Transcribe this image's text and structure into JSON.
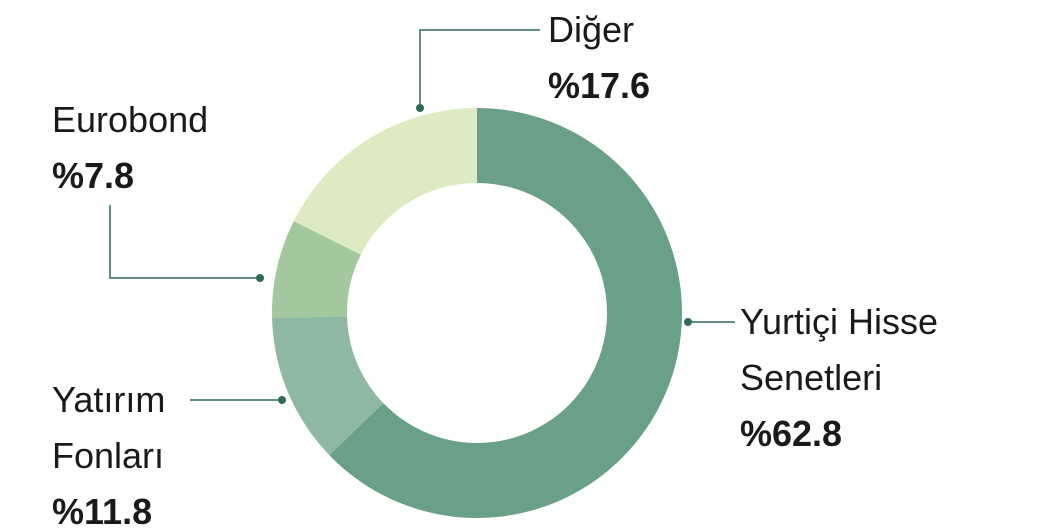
{
  "chart_data": {
    "type": "donut",
    "categories": [
      "Yurtiçi Hisse Senetleri",
      "Yatırım Fonları",
      "Eurobond",
      "Diğer"
    ],
    "values": [
      62.8,
      11.8,
      7.8,
      17.6
    ],
    "value_labels": [
      "%62.8",
      "%11.8",
      "%7.8",
      "%17.6"
    ],
    "colors": [
      "#6a9f88",
      "#8fb8a2",
      "#a3c8a0",
      "#deebc2"
    ]
  }
}
